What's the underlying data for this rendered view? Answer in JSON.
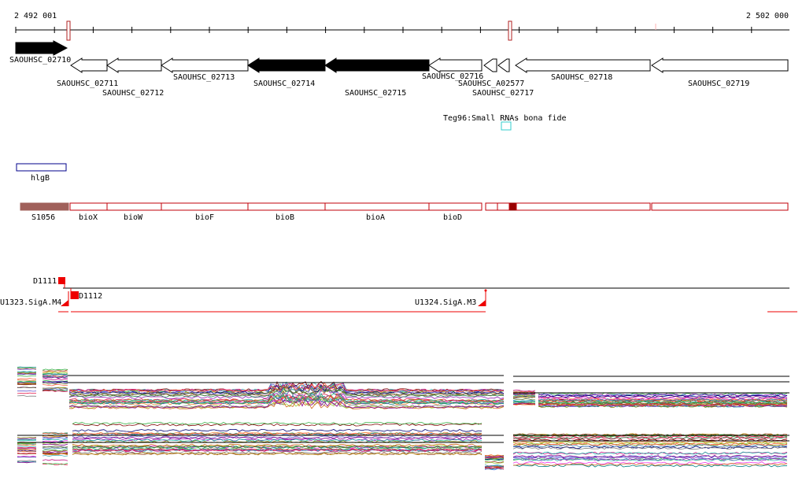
{
  "ruler": {
    "start_label": "2 492 001",
    "end_label": "2 502 000"
  },
  "genes": [
    {
      "label": "SAOUHSC_02710",
      "direction": "right",
      "highlight": true
    },
    {
      "label": "SAOUHSC_02711",
      "direction": "left",
      "highlight": false
    },
    {
      "label": "SAOUHSC_02712",
      "direction": "left",
      "highlight": false
    },
    {
      "label": "SAOUHSC_02713",
      "direction": "left",
      "highlight": false
    },
    {
      "label": "SAOUHSC_02714",
      "direction": "left",
      "highlight": true
    },
    {
      "label": "SAOUHSC_02715",
      "direction": "left",
      "highlight": true
    },
    {
      "label": "SAOUHSC_02716",
      "direction": "left",
      "highlight": false
    },
    {
      "label": "SAOUHSC_A02577",
      "direction": "left",
      "highlight": false
    },
    {
      "label": "SAOUHSC_02717",
      "direction": "left",
      "highlight": false
    },
    {
      "label": "SAOUHSC_02718",
      "direction": "left",
      "highlight": false
    },
    {
      "label": "SAOUHSC_02719",
      "direction": "left",
      "highlight": false
    }
  ],
  "srna": {
    "label": "Teg96:Small RNAs bona fide"
  },
  "hlgb": {
    "label": "hlgB"
  },
  "operon": [
    {
      "label": "S1056",
      "filled": true
    },
    {
      "label": "bioX",
      "filled": false
    },
    {
      "label": "bioW",
      "filled": false
    },
    {
      "label": "bioF",
      "filled": false
    },
    {
      "label": "bioB",
      "filled": false
    },
    {
      "label": "bioA",
      "filled": false
    },
    {
      "label": "bioD",
      "filled": false
    },
    {
      "label": "",
      "filled": false
    },
    {
      "label": "",
      "filled": false
    },
    {
      "label": "",
      "filled": true
    },
    {
      "label": "",
      "filled": false
    },
    {
      "label": "",
      "filled": false
    }
  ],
  "tss": [
    {
      "label": "D1111"
    },
    {
      "label": "D1112"
    },
    {
      "label": "U1323.SigA.M4"
    },
    {
      "label": "U1324.SigA.M3"
    }
  ],
  "colors": {
    "gene_outline": "#000000",
    "gene_fill_highlight": "#000000",
    "operon_outline": "#c0000a",
    "operon_fill_dark": "#990000",
    "s1056_fill": "#a0605a",
    "hlgb_outline": "#00008b",
    "srna_outline": "#33cccc",
    "tss_red": "#ee0000"
  }
}
